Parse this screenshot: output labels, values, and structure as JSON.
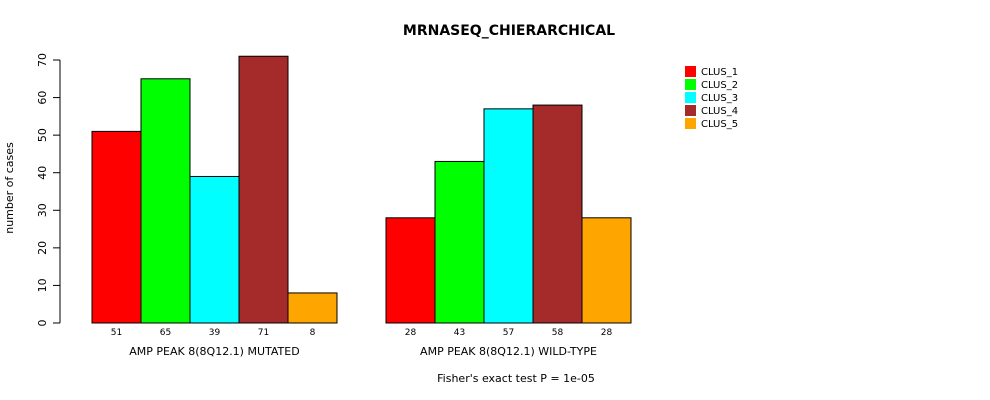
{
  "chart_data": {
    "type": "bar",
    "title": "MRNASEQ_CHIERARCHICAL",
    "xlabel": "",
    "ylabel": "number of cases",
    "footnote": "Fisher's exact test P = 1e-05",
    "ylim": [
      0,
      70
    ],
    "yticks": [
      "0",
      "10",
      "20",
      "30",
      "40",
      "50",
      "60",
      "70"
    ],
    "categories": [
      "AMP PEAK  8(8Q12.1) MUTATED",
      "AMP PEAK  8(8Q12.1) WILD-TYPE"
    ],
    "series": [
      {
        "name": "CLUS_1",
        "color": "#ff0000",
        "values": [
          51,
          28
        ]
      },
      {
        "name": "CLUS_2",
        "color": "#00ff00",
        "values": [
          65,
          43
        ]
      },
      {
        "name": "CLUS_3",
        "color": "#00ffff",
        "values": [
          39,
          57
        ]
      },
      {
        "name": "CLUS_4",
        "color": "#a52a2a",
        "values": [
          71,
          58
        ]
      },
      {
        "name": "CLUS_5",
        "color": "#ffa500",
        "values": [
          8,
          28
        ]
      }
    ],
    "count_labels": [
      [
        "51",
        "65",
        "39",
        "71",
        "8"
      ],
      [
        "28",
        "43",
        "57",
        "58",
        "28"
      ]
    ],
    "legend_position": "top-right",
    "grid": false
  }
}
